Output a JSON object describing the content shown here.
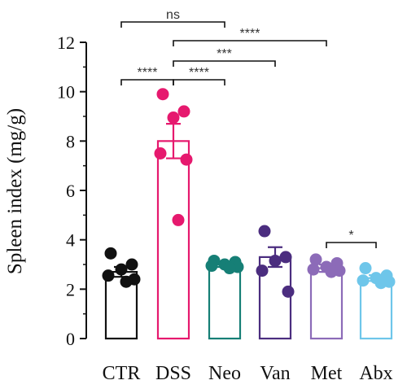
{
  "chart_data": {
    "type": "bar",
    "ylabel": "Spleen index (mg/g)",
    "ylim": [
      0,
      12
    ],
    "yticks": [
      0,
      2,
      4,
      6,
      8,
      10,
      12
    ],
    "categories": [
      "CTR",
      "DSS",
      "Neo",
      "Van",
      "Met",
      "Abx"
    ],
    "values": [
      2.7,
      8.0,
      3.0,
      3.3,
      2.85,
      2.45
    ],
    "sem": [
      0.2,
      0.7,
      0.1,
      0.4,
      0.15,
      0.12
    ],
    "colors": [
      "#111111",
      "#e6196e",
      "#167f76",
      "#4b2d7f",
      "#8c6bb8",
      "#6ec6ea"
    ],
    "points": [
      [
        3.45,
        3.0,
        2.8,
        2.55,
        2.4,
        2.3
      ],
      [
        9.9,
        9.2,
        8.95,
        7.5,
        7.25,
        4.8
      ],
      [
        3.15,
        3.1,
        3.0,
        2.95,
        2.9,
        2.85
      ],
      [
        4.35,
        3.3,
        3.15,
        2.75,
        1.9
      ],
      [
        3.2,
        3.05,
        2.9,
        2.8,
        2.75,
        2.7
      ],
      [
        2.85,
        2.55,
        2.45,
        2.35,
        2.3,
        2.25
      ]
    ],
    "significance": [
      {
        "from": 0,
        "to": 2,
        "label": "ns"
      },
      {
        "from": 1,
        "to": 4,
        "label": "****"
      },
      {
        "from": 1,
        "to": 3,
        "label": "***"
      },
      {
        "from": 0,
        "to": 1,
        "label": "****"
      },
      {
        "from": 1,
        "to": 2,
        "label": "****"
      },
      {
        "from": 4,
        "to": 5,
        "label": "*"
      }
    ]
  }
}
